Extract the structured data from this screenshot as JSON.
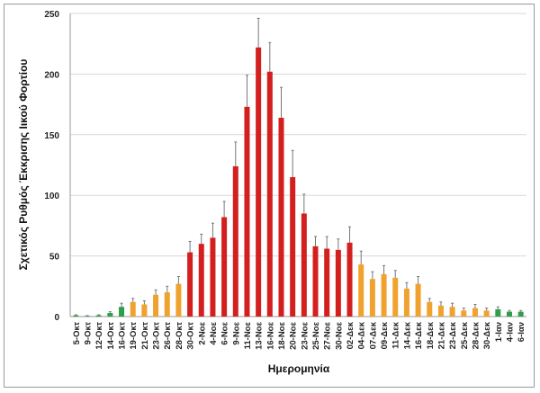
{
  "chart_data": {
    "type": "bar",
    "title": "",
    "xlabel": "Ημερομηνία",
    "ylabel": "Σχετικός Ρυθμός Έκκρισης Ιικού Φορτίου",
    "ylim": [
      0,
      250
    ],
    "yticks": [
      0,
      50,
      100,
      150,
      200,
      250
    ],
    "grid": true,
    "legend": "none",
    "categories": [
      "5-Οκτ",
      "9-Οκτ",
      "12-Οκτ",
      "14-Οκτ",
      "16-Οκτ",
      "19-Οκτ",
      "21-Οκτ",
      "23-Οκτ",
      "26-Οκτ",
      "28-Οκτ",
      "30-Οκτ",
      "2-Νοε",
      "4-Νοε",
      "6-Νοε",
      "9-Νοε",
      "11-Νοε",
      "13-Νοε",
      "16-Νοε",
      "18-Νοε",
      "20-Νοε",
      "23-Νοε",
      "25-Νοε",
      "27-Νοε",
      "30-Νοε",
      "02-Δεκ",
      "04-Δεκ",
      "07-Δεκ",
      "09-Δεκ",
      "11-Δεκ",
      "14-Δεκ",
      "16-Δεκ",
      "18-Δεκ",
      "21-Δεκ",
      "23-Δεκ",
      "25-Δεκ",
      "28-Δεκ",
      "30-Δεκ",
      "1-Ιαν",
      "4-Ιαν",
      "6-Ιαν"
    ],
    "values": [
      1,
      0.5,
      1,
      3,
      8,
      12,
      10,
      18,
      20,
      27,
      53,
      60,
      65,
      82,
      124,
      173,
      222,
      202,
      164,
      115,
      85,
      58,
      56,
      55,
      61,
      43,
      31,
      35,
      32,
      23,
      27,
      12,
      9,
      8,
      5,
      7,
      5,
      6,
      4,
      4
    ],
    "errors": [
      0.5,
      0.3,
      0.5,
      1,
      3,
      3,
      3,
      4,
      5,
      6,
      9,
      8,
      12,
      13,
      20,
      26,
      24,
      24,
      25,
      22,
      16,
      8,
      10,
      9,
      13,
      11,
      6,
      7,
      6,
      5,
      6,
      3,
      3,
      3,
      2,
      3,
      2,
      2,
      1,
      1
    ],
    "levels": [
      "green",
      "green",
      "green",
      "green",
      "green",
      "orange",
      "orange",
      "orange",
      "orange",
      "orange",
      "red",
      "red",
      "red",
      "red",
      "red",
      "red",
      "red",
      "red",
      "red",
      "red",
      "red",
      "red",
      "red",
      "red",
      "red",
      "orange",
      "orange",
      "orange",
      "orange",
      "orange",
      "orange",
      "orange",
      "orange",
      "orange",
      "orange",
      "orange",
      "orange",
      "green",
      "green",
      "green"
    ],
    "colors": {
      "red": "#d41f1f",
      "orange": "#f0a22e",
      "green": "#2f9e4b",
      "error": "#777777",
      "grid": "#d9d9d9"
    }
  }
}
